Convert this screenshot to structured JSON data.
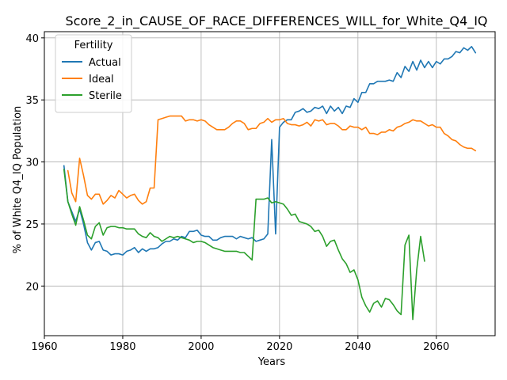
{
  "chart_data": {
    "type": "line",
    "title": "Score_2_in_CAUSE_OF_RACE_DIFFERENCES_WILL_for_White_Q4_IQ",
    "xlabel": "Years",
    "ylabel": "% of White Q4_IQ Population",
    "xlim": [
      1960,
      2075
    ],
    "ylim": [
      16,
      40.5
    ],
    "xticks": [
      1960,
      1980,
      2000,
      2020,
      2040,
      2060
    ],
    "yticks": [
      20,
      25,
      30,
      35,
      40
    ],
    "grid": true,
    "legend": {
      "title": "Fertility",
      "placement": "top-left"
    },
    "series": [
      {
        "name": "Actual",
        "color": "#1f77b4",
        "x": [
          1965,
          1966,
          1967,
          1968,
          1969,
          1970,
          1971,
          1972,
          1973,
          1974,
          1975,
          1976,
          1977,
          1978,
          1979,
          1980,
          1981,
          1982,
          1983,
          1984,
          1985,
          1986,
          1987,
          1988,
          1989,
          1990,
          1991,
          1992,
          1993,
          1994,
          1995,
          1996,
          1997,
          1998,
          1999,
          2000,
          2001,
          2002,
          2003,
          2004,
          2005,
          2006,
          2007,
          2008,
          2009,
          2010,
          2011,
          2012,
          2013,
          2014,
          2015,
          2016,
          2017,
          2018,
          2019,
          2020,
          2021,
          2022,
          2023,
          2024,
          2025,
          2026,
          2027,
          2028,
          2029,
          2030,
          2031,
          2032,
          2033,
          2034,
          2035,
          2036,
          2037,
          2038,
          2039,
          2040,
          2041,
          2042,
          2043,
          2044,
          2045,
          2046,
          2047,
          2048,
          2049,
          2050,
          2051,
          2052,
          2053,
          2054,
          2055,
          2056,
          2057,
          2058,
          2059,
          2060,
          2061,
          2062,
          2063,
          2064,
          2065,
          2066,
          2067,
          2068,
          2069,
          2070
        ],
        "y": [
          29.7,
          26.8,
          26.0,
          25.2,
          26.2,
          25.0,
          23.5,
          22.9,
          23.5,
          23.6,
          22.9,
          22.8,
          22.5,
          22.6,
          22.6,
          22.5,
          22.8,
          22.9,
          23.1,
          22.7,
          23.0,
          22.8,
          23.0,
          23.0,
          23.1,
          23.4,
          23.6,
          23.6,
          23.8,
          23.7,
          24.0,
          23.9,
          24.4,
          24.4,
          24.5,
          24.1,
          24.0,
          24.0,
          23.7,
          23.7,
          23.9,
          24.0,
          24.0,
          24.0,
          23.8,
          24.0,
          23.9,
          23.8,
          23.9,
          23.6,
          23.7,
          23.8,
          24.2,
          31.8,
          24.2,
          32.8,
          33.2,
          33.4,
          33.4,
          34.0,
          34.1,
          34.3,
          34.0,
          34.1,
          34.4,
          34.3,
          34.5,
          33.9,
          34.5,
          34.1,
          34.4,
          33.9,
          34.5,
          34.4,
          35.1,
          34.8,
          35.6,
          35.6,
          36.3,
          36.3,
          36.5,
          36.5,
          36.5,
          36.6,
          36.5,
          37.2,
          36.8,
          37.7,
          37.3,
          38.1,
          37.4,
          38.2,
          37.6,
          38.1,
          37.6,
          38.1,
          37.9,
          38.3,
          38.3,
          38.5,
          38.9,
          38.8,
          39.2,
          39.0,
          39.3,
          38.8
        ]
      },
      {
        "name": "Ideal",
        "color": "#ff7f0e",
        "x": [
          1966,
          1967,
          1968,
          1969,
          1970,
          1971,
          1972,
          1973,
          1974,
          1975,
          1976,
          1977,
          1978,
          1979,
          1980,
          1981,
          1982,
          1983,
          1984,
          1985,
          1986,
          1987,
          1988,
          1989,
          1990,
          1991,
          1992,
          1993,
          1994,
          1995,
          1996,
          1997,
          1998,
          1999,
          2000,
          2001,
          2002,
          2003,
          2004,
          2005,
          2006,
          2007,
          2008,
          2009,
          2010,
          2011,
          2012,
          2013,
          2014,
          2015,
          2016,
          2017,
          2018,
          2019,
          2020,
          2021,
          2022,
          2023,
          2024,
          2025,
          2026,
          2027,
          2028,
          2029,
          2030,
          2031,
          2032,
          2033,
          2034,
          2035,
          2036,
          2037,
          2038,
          2039,
          2040,
          2041,
          2042,
          2043,
          2044,
          2045,
          2046,
          2047,
          2048,
          2049,
          2050,
          2051,
          2052,
          2053,
          2054,
          2055,
          2056,
          2057,
          2058,
          2059,
          2060,
          2061,
          2062,
          2063,
          2064,
          2065,
          2066,
          2067,
          2068,
          2069,
          2070
        ],
        "y": [
          29.3,
          27.5,
          26.8,
          30.3,
          28.9,
          27.3,
          27.0,
          27.4,
          27.4,
          26.6,
          26.9,
          27.3,
          27.1,
          27.7,
          27.4,
          27.1,
          27.3,
          27.4,
          26.9,
          26.6,
          26.8,
          27.9,
          27.9,
          33.4,
          33.5,
          33.6,
          33.7,
          33.7,
          33.7,
          33.7,
          33.3,
          33.4,
          33.4,
          33.3,
          33.4,
          33.3,
          33.0,
          32.8,
          32.6,
          32.6,
          32.6,
          32.8,
          33.1,
          33.3,
          33.3,
          33.1,
          32.6,
          32.7,
          32.7,
          33.1,
          33.2,
          33.5,
          33.2,
          33.4,
          33.4,
          33.5,
          33.1,
          33.0,
          33.0,
          32.9,
          33.0,
          33.2,
          32.9,
          33.4,
          33.3,
          33.4,
          33.0,
          33.1,
          33.1,
          32.9,
          32.6,
          32.6,
          32.9,
          32.8,
          32.8,
          32.6,
          32.8,
          32.3,
          32.3,
          32.2,
          32.4,
          32.4,
          32.6,
          32.5,
          32.8,
          32.9,
          33.1,
          33.2,
          33.4,
          33.3,
          33.3,
          33.1,
          32.9,
          33.0,
          32.8,
          32.8,
          32.3,
          32.1,
          31.8,
          31.7,
          31.4,
          31.2,
          31.1,
          31.1,
          30.9
        ]
      },
      {
        "name": "Sterile",
        "color": "#2ca02c",
        "x": [
          1965,
          1966,
          1967,
          1968,
          1969,
          1970,
          1971,
          1972,
          1973,
          1974,
          1975,
          1976,
          1977,
          1978,
          1979,
          1980,
          1981,
          1982,
          1983,
          1984,
          1985,
          1986,
          1987,
          1988,
          1989,
          1990,
          1991,
          1992,
          1993,
          1994,
          1995,
          1996,
          1997,
          1998,
          1999,
          2000,
          2001,
          2002,
          2003,
          2004,
          2005,
          2006,
          2007,
          2008,
          2009,
          2010,
          2011,
          2012,
          2013,
          2014,
          2015,
          2016,
          2017,
          2018,
          2019,
          2020,
          2021,
          2022,
          2023,
          2024,
          2025,
          2026,
          2027,
          2028,
          2029,
          2030,
          2031,
          2032,
          2033,
          2034,
          2035,
          2036,
          2037,
          2038,
          2039,
          2040,
          2041,
          2042,
          2043,
          2044,
          2045,
          2046,
          2047,
          2048,
          2049,
          2050,
          2051,
          2052,
          2053,
          2054,
          2055,
          2056,
          2057
        ],
        "y": [
          29.4,
          26.8,
          25.8,
          24.9,
          26.4,
          25.3,
          24.1,
          23.8,
          24.8,
          25.1,
          24.1,
          24.7,
          24.8,
          24.8,
          24.7,
          24.7,
          24.6,
          24.6,
          24.6,
          24.2,
          24.0,
          23.9,
          24.3,
          24.0,
          23.9,
          23.6,
          23.8,
          24.0,
          23.9,
          24.0,
          23.9,
          23.8,
          23.7,
          23.5,
          23.6,
          23.6,
          23.5,
          23.3,
          23.1,
          23.0,
          22.9,
          22.8,
          22.8,
          22.8,
          22.8,
          22.7,
          22.7,
          22.4,
          22.1,
          27.0,
          27.0,
          27.0,
          27.1,
          26.7,
          26.8,
          26.7,
          26.6,
          26.2,
          25.7,
          25.8,
          25.2,
          25.1,
          25.0,
          24.8,
          24.4,
          24.5,
          24.0,
          23.2,
          23.6,
          23.7,
          22.9,
          22.2,
          21.8,
          21.1,
          21.3,
          20.5,
          19.1,
          18.4,
          17.9,
          18.6,
          18.8,
          18.3,
          19.0,
          18.9,
          18.5,
          18.0,
          17.7,
          23.3,
          24.1,
          17.3,
          21.3,
          24.0,
          22.0
        ]
      }
    ]
  }
}
